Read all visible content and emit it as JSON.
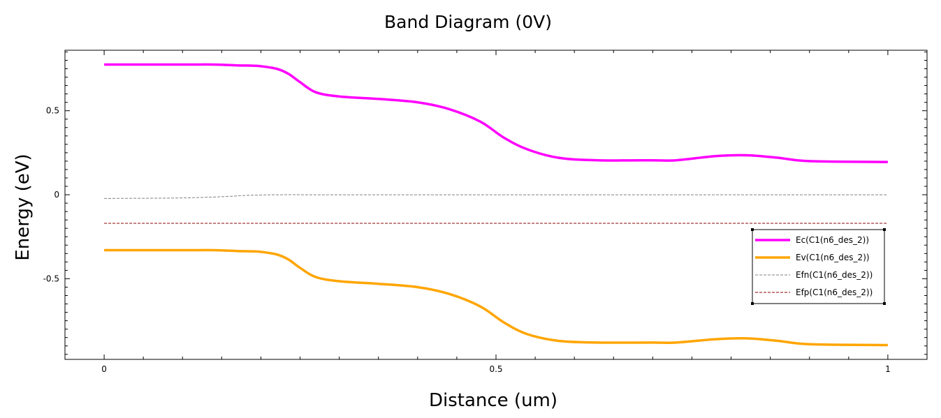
{
  "chart_data": {
    "type": "line",
    "title": "Band Diagram (0V)",
    "xlabel": "Distance (um)",
    "ylabel": "Energy (eV)",
    "xlim": [
      -0.05,
      1.05
    ],
    "ylim": [
      -0.98,
      0.86
    ],
    "xticks": [
      {
        "value": 0,
        "label": "0"
      },
      {
        "value": 0.5,
        "label": "0.5"
      },
      {
        "value": 1,
        "label": "1"
      }
    ],
    "yticks": [
      {
        "value": 0.5,
        "label": "0.5"
      },
      {
        "value": 0,
        "label": "0"
      },
      {
        "value": -0.5,
        "label": "-0.5"
      }
    ],
    "grid": false,
    "legend_position": "right",
    "series": [
      {
        "name": "Ec(C1(n6_des_2))",
        "color": "#ff00ff",
        "style": "solid",
        "x": [
          0,
          0.1,
          0.14,
          0.17,
          0.19,
          0.2,
          0.22,
          0.235,
          0.25,
          0.27,
          0.3,
          0.35,
          0.4,
          0.44,
          0.48,
          0.51,
          0.54,
          0.58,
          0.63,
          0.7,
          0.73,
          0.78,
          0.82,
          0.86,
          0.9,
          1.0
        ],
        "y": [
          0.775,
          0.775,
          0.775,
          0.77,
          0.768,
          0.765,
          0.75,
          0.72,
          0.67,
          0.61,
          0.585,
          0.57,
          0.55,
          0.51,
          0.435,
          0.34,
          0.27,
          0.22,
          0.205,
          0.205,
          0.205,
          0.23,
          0.235,
          0.22,
          0.2,
          0.195
        ]
      },
      {
        "name": "Ev(C1(n6_des_2))",
        "color": "#ffa500",
        "style": "solid",
        "x": [
          0,
          0.1,
          0.14,
          0.17,
          0.19,
          0.2,
          0.22,
          0.235,
          0.25,
          0.27,
          0.3,
          0.35,
          0.4,
          0.44,
          0.48,
          0.51,
          0.54,
          0.58,
          0.63,
          0.7,
          0.73,
          0.78,
          0.82,
          0.86,
          0.9,
          1.0
        ],
        "y": [
          -0.33,
          -0.33,
          -0.33,
          -0.335,
          -0.337,
          -0.34,
          -0.355,
          -0.385,
          -0.435,
          -0.49,
          -0.515,
          -0.53,
          -0.55,
          -0.59,
          -0.665,
          -0.76,
          -0.83,
          -0.87,
          -0.88,
          -0.88,
          -0.88,
          -0.86,
          -0.855,
          -0.87,
          -0.89,
          -0.895
        ]
      },
      {
        "name": "Efn(C1(n6_des_2))",
        "color": "#808080",
        "style": "dashed",
        "x": [
          0,
          0.05,
          0.1,
          0.15,
          0.18,
          0.2,
          0.22,
          0.3,
          0.5,
          1.0
        ],
        "y": [
          -0.022,
          -0.021,
          -0.019,
          -0.012,
          -0.004,
          -0.002,
          0.0,
          0.0,
          0.0,
          0.0
        ]
      },
      {
        "name": "Efp(C1(n6_des_2))",
        "color": "#8b0000",
        "style": "dashed",
        "x": [
          0,
          1.0
        ],
        "y": [
          -0.17,
          -0.17
        ]
      }
    ]
  }
}
